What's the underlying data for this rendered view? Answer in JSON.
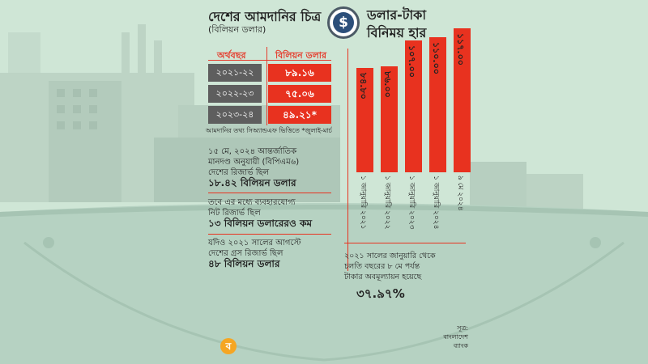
{
  "left": {
    "title": "দেশের আমদানির চিত্র",
    "unit": "(বিলিয়ন ডলার)",
    "table": {
      "header_year": "অর্থবছর",
      "header_value": "বিলিয়ন ডলার",
      "rows": [
        {
          "year": "২০২১-২২",
          "value": "৮৯.১৬"
        },
        {
          "year": "২০২২-২৩",
          "value": "৭৫.০৬"
        },
        {
          "year": "২০২৩-২৪",
          "value": "৪৯.২১*"
        }
      ],
      "note": "আমদানির তথ্য সিঅ্যান্ডএফ ভিত্তিতে   *জুলাই-মার্চ"
    },
    "facts": [
      {
        "line1": "১৫ মে, ২০২৪ আন্তর্জাতিক",
        "line2": "মানদণ্ড অনুযায়ী (বিপিএম৬)",
        "line3": "দেশের রিজার্ভ ছিল",
        "value": "১৮.৪২ বিলিয়ন ডলার"
      },
      {
        "line1": "তবে এর মধ্যে ব্যবহারযোগ্য",
        "line2": "নিট রিজার্ভ ছিল",
        "value": "১৩ বিলিয়ন ডলারেরও কম"
      },
      {
        "line1": "যদিও ২০২১ সালের আগস্টে",
        "line2": "দেশের গ্রস রিজার্ভ ছিল",
        "value": "৪৮ বিলিয়ন ডলার"
      }
    ]
  },
  "right": {
    "title_line1": "ডলার-টাকা",
    "title_line2": "বিনিময় হার",
    "depreciation": {
      "line1": "২০২১ সালের জানুয়ারি থেকে",
      "line2": "চলতি বছরের ৮ মে পর্যন্ত",
      "line3": "টাকার অবমূল্যায়ন হয়েছে",
      "value": "৩৭.৯৭%"
    }
  },
  "source": {
    "label": "সূত্র:",
    "name_line1": "বাংলাদেশ",
    "name_line2": "ব্যাংক"
  },
  "icons": {
    "coin": "dollar-coin-icon",
    "dollar_glyph": "$",
    "logo_glyph": "ব"
  },
  "colors": {
    "accent_red": "#e8321f",
    "dark_gray": "#5e5e5e",
    "background": "#cfe6d6"
  },
  "chart_data": {
    "type": "bar",
    "title": "ডলার-টাকা বিনিময় হার",
    "categories": [
      "১ জানুয়ারি ২০২১",
      "১ জানুয়ারি ২০২২",
      "১ জানুয়ারি ২০২৩",
      "১ জানুয়ারি ২০২৪",
      "৯ মে ২০২৪"
    ],
    "values": [
      84.8,
      86.0,
      107.0,
      110.0,
      117.0
    ],
    "value_labels": [
      "৮৪.৮০",
      "৮৬.০০",
      "১০৭.০০",
      "১১০.০০",
      "১১৭.০০"
    ],
    "xlabel": "",
    "ylabel": "",
    "ylim": [
      0,
      117
    ],
    "grid": false,
    "bar_color": "#e8321f"
  }
}
